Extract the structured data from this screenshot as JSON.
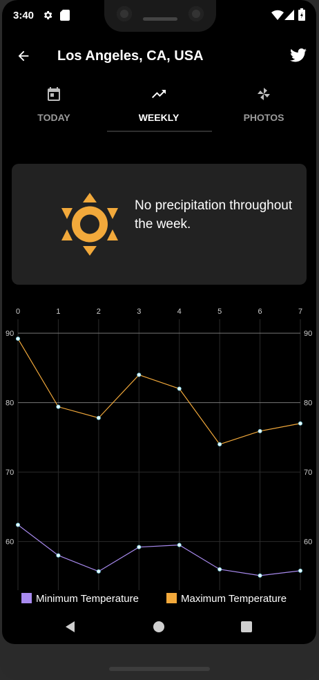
{
  "status_bar": {
    "time": "3:40",
    "icons": [
      "settings-icon",
      "sd-card-icon",
      "wifi-icon",
      "signal-icon",
      "battery-icon"
    ]
  },
  "app_bar": {
    "title": "Los Angeles, CA, USA",
    "back_icon": "arrow-back-icon",
    "share_icon": "twitter-icon"
  },
  "tabs": [
    {
      "label": "TODAY",
      "icon": "calendar-icon",
      "active": false
    },
    {
      "label": "WEEKLY",
      "icon": "trending-up-icon",
      "active": true
    },
    {
      "label": "PHOTOS",
      "icon": "pinwheel-icon",
      "active": false
    }
  ],
  "weekly_card": {
    "icon": "sun-icon",
    "icon_color": "#f2a93b",
    "message": "No precipitation throughout the week."
  },
  "chart_data": {
    "type": "line",
    "x": [
      0,
      1,
      2,
      3,
      4,
      5,
      6,
      7
    ],
    "x_ticks": [
      "0",
      "1",
      "2",
      "3",
      "4",
      "5",
      "6",
      "7"
    ],
    "y_ticks": [
      "60",
      "70",
      "80",
      "90"
    ],
    "ylim": [
      53,
      92
    ],
    "grid": true,
    "legend_position": "bottom",
    "series": [
      {
        "name": "Minimum Temperature",
        "color": "#a98bf0",
        "values": [
          62.4,
          58.0,
          55.7,
          59.2,
          59.5,
          56.0,
          55.1,
          55.8
        ]
      },
      {
        "name": "Maximum Temperature",
        "color": "#f2a93b",
        "values": [
          89.2,
          79.4,
          77.8,
          84.0,
          82.0,
          74.0,
          75.9,
          77.0
        ]
      }
    ]
  },
  "nav_bar": {
    "icons": [
      "back-triangle-icon",
      "home-circle-icon",
      "recents-square-icon"
    ]
  }
}
